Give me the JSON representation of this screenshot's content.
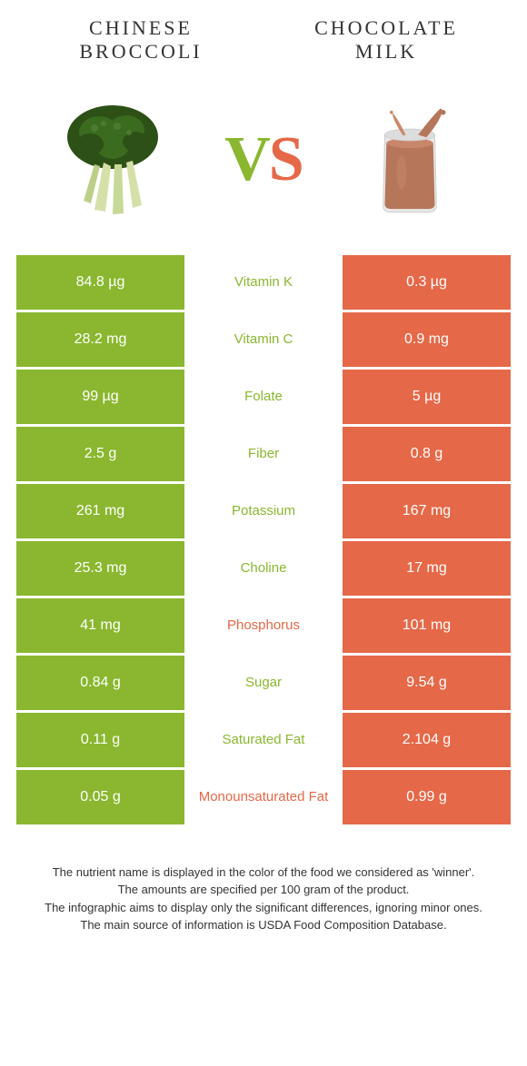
{
  "colors": {
    "left": "#8ab72f",
    "right": "#e56848",
    "bg": "#ffffff",
    "text": "#333333"
  },
  "header": {
    "left_title": "Chinese Broccoli",
    "right_title": "Chocolate Milk",
    "vs_left": "V",
    "vs_right": "S"
  },
  "rows": [
    {
      "left": "84.8 µg",
      "label": "Vitamin K",
      "right": "0.3 µg",
      "winner": "left"
    },
    {
      "left": "28.2 mg",
      "label": "Vitamin C",
      "right": "0.9 mg",
      "winner": "left"
    },
    {
      "left": "99 µg",
      "label": "Folate",
      "right": "5 µg",
      "winner": "left"
    },
    {
      "left": "2.5 g",
      "label": "Fiber",
      "right": "0.8 g",
      "winner": "left"
    },
    {
      "left": "261 mg",
      "label": "Potassium",
      "right": "167 mg",
      "winner": "left"
    },
    {
      "left": "25.3 mg",
      "label": "Choline",
      "right": "17 mg",
      "winner": "left"
    },
    {
      "left": "41 mg",
      "label": "Phosphorus",
      "right": "101 mg",
      "winner": "right"
    },
    {
      "left": "0.84 g",
      "label": "Sugar",
      "right": "9.54 g",
      "winner": "left"
    },
    {
      "left": "0.11 g",
      "label": "Saturated Fat",
      "right": "2.104 g",
      "winner": "left"
    },
    {
      "left": "0.05 g",
      "label": "Monounsaturated Fat",
      "right": "0.99 g",
      "winner": "right"
    }
  ],
  "footnotes": [
    "The nutrient name is displayed in the color of the food we considered as 'winner'.",
    "The amounts are specified per 100 gram of the product.",
    "The infographic aims to display only the significant differences, ignoring minor ones.",
    "The main source of information is USDA Food Composition Database."
  ]
}
